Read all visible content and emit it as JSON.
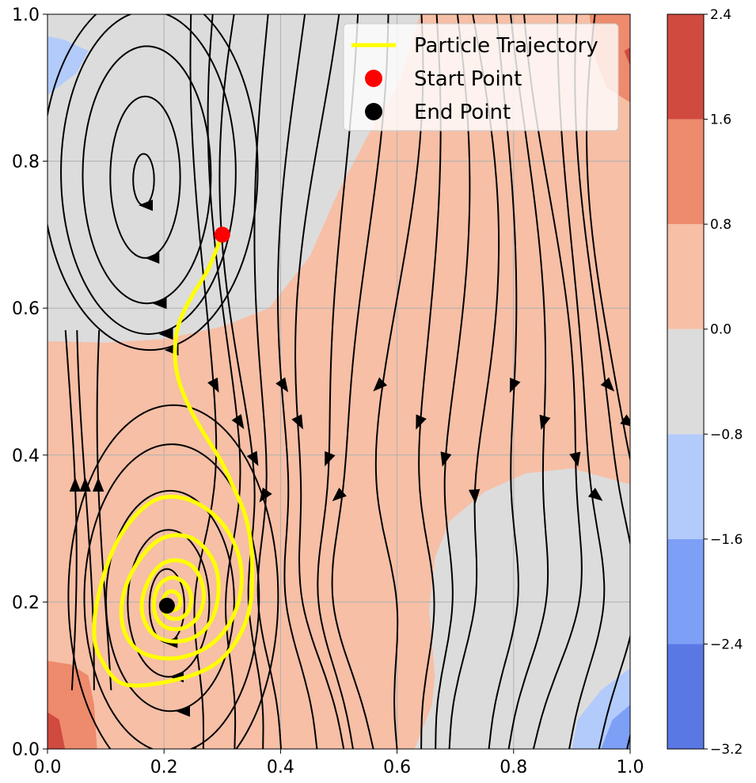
{
  "chart_data": {
    "type": "contour+streamplot",
    "xlim": [
      0.0,
      1.0
    ],
    "ylim": [
      0.0,
      1.0
    ],
    "x_ticks": [
      "0.0",
      "0.2",
      "0.4",
      "0.6",
      "0.8",
      "1.0"
    ],
    "y_ticks": [
      "0.0",
      "0.2",
      "0.4",
      "0.6",
      "0.8",
      "1.0"
    ],
    "grid": true,
    "colorbar": {
      "levels": [
        -3.2,
        -2.4,
        -1.6,
        -0.8,
        0.0,
        0.8,
        1.6,
        2.4
      ],
      "tick_labels": [
        "−3.2",
        "−2.4",
        "−1.6",
        "−0.8",
        "0.0",
        "0.8",
        "1.6",
        "2.4"
      ],
      "colors": [
        "#5a78e4",
        "#7d9ff5",
        "#b2cbfb",
        "#dcdcdc",
        "#f6bfa6",
        "#ed8b6c",
        "#d04a3f"
      ]
    },
    "regions": [
      {
        "level": "-0.8..0.0",
        "polygon": [
          [
            0.0,
            0.555
          ],
          [
            0.1,
            0.553
          ],
          [
            0.2,
            0.558
          ],
          [
            0.3,
            0.575
          ],
          [
            0.38,
            0.6
          ],
          [
            0.45,
            0.67
          ],
          [
            0.5,
            0.76
          ],
          [
            0.56,
            0.85
          ],
          [
            0.6,
            0.9
          ],
          [
            0.64,
            1.0
          ],
          [
            0.0,
            1.0
          ]
        ]
      },
      {
        "level": "-0.8..0.0",
        "polygon": [
          [
            0.63,
            0.0
          ],
          [
            1.0,
            0.0
          ],
          [
            1.0,
            0.36
          ],
          [
            0.9,
            0.382
          ],
          [
            0.82,
            0.375
          ],
          [
            0.75,
            0.35
          ],
          [
            0.69,
            0.31
          ],
          [
            0.665,
            0.26
          ],
          [
            0.655,
            0.19
          ],
          [
            0.665,
            0.1
          ],
          [
            0.66,
            0.06
          ]
        ]
      },
      {
        "level": "-1.6..-0.8",
        "polygon": [
          [
            0.0,
            0.97
          ],
          [
            0.03,
            0.965
          ],
          [
            0.07,
            0.95
          ],
          [
            0.05,
            0.92
          ],
          [
            0.0,
            0.89
          ]
        ]
      },
      {
        "level": "-1.6..-0.8",
        "polygon": [
          [
            0.9,
            0.0
          ],
          [
            0.91,
            0.04
          ],
          [
            0.95,
            0.08
          ],
          [
            1.0,
            0.11
          ],
          [
            1.0,
            0.0
          ]
        ]
      },
      {
        "level": "-2.4..-1.6",
        "polygon": [
          [
            0.95,
            0.0
          ],
          [
            0.97,
            0.04
          ],
          [
            1.0,
            0.06
          ],
          [
            1.0,
            0.0
          ]
        ]
      },
      {
        "level": "0.8..1.6",
        "polygon": [
          [
            0.0,
            0.0
          ],
          [
            0.085,
            0.0
          ],
          [
            0.08,
            0.06
          ],
          [
            0.07,
            0.1
          ],
          [
            0.04,
            0.115
          ],
          [
            0.0,
            0.12
          ]
        ]
      },
      {
        "level": "1.6..2.4",
        "polygon": [
          [
            0.0,
            0.0
          ],
          [
            0.03,
            0.0
          ],
          [
            0.02,
            0.04
          ],
          [
            0.0,
            0.05
          ]
        ]
      },
      {
        "level": "0.8..1.6",
        "polygon": [
          [
            0.93,
            1.0
          ],
          [
            1.0,
            1.0
          ],
          [
            1.0,
            0.88
          ],
          [
            0.96,
            0.9
          ],
          [
            0.94,
            0.94
          ]
        ]
      },
      {
        "level": "1.6..2.4",
        "polygon": [
          [
            0.99,
            0.95
          ],
          [
            1.0,
            0.955
          ],
          [
            1.0,
            0.93
          ]
        ]
      }
    ],
    "vortices": [
      {
        "center": [
          0.165,
          0.775
        ],
        "radii": [
          [
            0.018,
            0.035
          ],
          [
            0.06,
            0.11
          ],
          [
            0.11,
            0.175
          ],
          [
            0.15,
            0.22
          ],
          [
            0.185,
            0.245
          ]
        ],
        "direction": "ccw"
      },
      {
        "center": [
          0.205,
          0.195
        ],
        "radii": [
          [
            0.03,
            0.05
          ],
          [
            0.07,
            0.1
          ],
          [
            0.11,
            0.15
          ],
          [
            0.15,
            0.21
          ],
          [
            0.18,
            0.26
          ]
        ],
        "direction": "ccw"
      }
    ],
    "stream_columns_down": [
      0.27,
      0.31,
      0.34,
      0.38,
      0.43,
      0.47,
      0.51,
      0.55,
      0.6,
      0.65,
      0.69,
      0.73,
      0.78,
      0.82,
      0.86,
      0.9,
      0.94,
      0.97
    ],
    "stream_columns_up": [
      0.035,
      0.065,
      0.1
    ],
    "trajectory": {
      "start": [
        0.3,
        0.7
      ],
      "end": [
        0.205,
        0.195
      ],
      "path": [
        [
          0.3,
          0.7
        ],
        [
          0.29,
          0.68
        ],
        [
          0.275,
          0.65
        ],
        [
          0.25,
          0.62
        ],
        [
          0.23,
          0.59
        ],
        [
          0.22,
          0.565
        ],
        [
          0.218,
          0.53
        ],
        [
          0.225,
          0.5
        ],
        [
          0.24,
          0.47
        ],
        [
          0.26,
          0.44
        ],
        [
          0.28,
          0.415
        ],
        [
          0.3,
          0.39
        ],
        [
          0.32,
          0.355
        ],
        [
          0.34,
          0.32
        ],
        [
          0.35,
          0.28
        ],
        [
          0.352,
          0.24
        ],
        [
          0.35,
          0.2
        ],
        [
          0.34,
          0.17
        ],
        [
          0.32,
          0.14
        ],
        [
          0.29,
          0.115
        ],
        [
          0.25,
          0.1
        ],
        [
          0.2,
          0.09
        ],
        [
          0.15,
          0.085
        ],
        [
          0.12,
          0.09
        ],
        [
          0.1,
          0.11
        ],
        [
          0.08,
          0.14
        ],
        [
          0.08,
          0.18
        ],
        [
          0.09,
          0.22
        ],
        [
          0.11,
          0.27
        ],
        [
          0.14,
          0.31
        ],
        [
          0.18,
          0.34
        ],
        [
          0.22,
          0.345
        ],
        [
          0.26,
          0.335
        ],
        [
          0.3,
          0.31
        ],
        [
          0.325,
          0.275
        ],
        [
          0.335,
          0.24
        ],
        [
          0.33,
          0.2
        ],
        [
          0.31,
          0.165
        ],
        [
          0.28,
          0.14
        ],
        [
          0.24,
          0.125
        ],
        [
          0.2,
          0.122
        ],
        [
          0.16,
          0.13
        ],
        [
          0.135,
          0.15
        ],
        [
          0.125,
          0.18
        ],
        [
          0.13,
          0.215
        ],
        [
          0.15,
          0.25
        ],
        [
          0.18,
          0.28
        ],
        [
          0.21,
          0.292
        ],
        [
          0.245,
          0.29
        ],
        [
          0.27,
          0.275
        ],
        [
          0.29,
          0.25
        ],
        [
          0.295,
          0.22
        ],
        [
          0.29,
          0.19
        ],
        [
          0.275,
          0.165
        ],
        [
          0.25,
          0.15
        ],
        [
          0.22,
          0.145
        ],
        [
          0.19,
          0.15
        ],
        [
          0.17,
          0.165
        ],
        [
          0.16,
          0.19
        ],
        [
          0.165,
          0.215
        ],
        [
          0.18,
          0.24
        ],
        [
          0.2,
          0.255
        ],
        [
          0.225,
          0.258
        ],
        [
          0.25,
          0.25
        ],
        [
          0.265,
          0.23
        ],
        [
          0.27,
          0.205
        ],
        [
          0.26,
          0.18
        ],
        [
          0.24,
          0.165
        ],
        [
          0.215,
          0.162
        ],
        [
          0.195,
          0.168
        ],
        [
          0.182,
          0.185
        ],
        [
          0.183,
          0.21
        ],
        [
          0.195,
          0.228
        ],
        [
          0.215,
          0.235
        ],
        [
          0.235,
          0.228
        ],
        [
          0.248,
          0.21
        ],
        [
          0.245,
          0.19
        ],
        [
          0.232,
          0.178
        ],
        [
          0.212,
          0.176
        ],
        [
          0.198,
          0.186
        ],
        [
          0.197,
          0.204
        ],
        [
          0.207,
          0.215
        ],
        [
          0.222,
          0.214
        ],
        [
          0.23,
          0.202
        ],
        [
          0.224,
          0.19
        ],
        [
          0.21,
          0.188
        ],
        [
          0.205,
          0.195
        ]
      ]
    },
    "legend": {
      "position": "upper right",
      "entries": [
        {
          "label": "Particle Trajectory",
          "kind": "line",
          "color": "#ffff00"
        },
        {
          "label": "Start Point",
          "kind": "point",
          "color": "#ff0000"
        },
        {
          "label": "End Point",
          "kind": "point",
          "color": "#000000"
        }
      ]
    },
    "colors": {
      "trajectory": "#ffff00",
      "start": "#ff0000",
      "end": "#000000",
      "streamlines": "#000000",
      "grid": "#b0b0b0"
    }
  }
}
